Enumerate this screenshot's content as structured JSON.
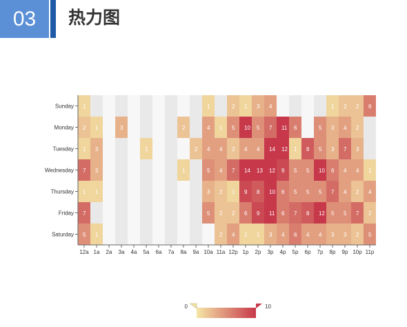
{
  "header": {
    "number": "03",
    "title": "热力图"
  },
  "chart_data": {
    "type": "heatmap",
    "x": [
      "12a",
      "1a",
      "2a",
      "3a",
      "4a",
      "5a",
      "6a",
      "7a",
      "8a",
      "9a",
      "10a",
      "11a",
      "12p",
      "1p",
      "2p",
      "3p",
      "4p",
      "5p",
      "6p",
      "7p",
      "8p",
      "9p",
      "10p",
      "11p"
    ],
    "y": [
      "Sunday",
      "Monday",
      "Tuesday",
      "Wednesday",
      "Thursday",
      "Friday",
      "Saturday"
    ],
    "values": [
      [
        1,
        0,
        0,
        0,
        0,
        0,
        0,
        0,
        0,
        0,
        1,
        0,
        2,
        1,
        3,
        4,
        0,
        0,
        0,
        0,
        1,
        2,
        2,
        6
      ],
      [
        2,
        1,
        0,
        3,
        0,
        0,
        0,
        0,
        2,
        0,
        4,
        1,
        5,
        10,
        5,
        7,
        11,
        6,
        0,
        5,
        3,
        4,
        2,
        0
      ],
      [
        1,
        3,
        0,
        0,
        0,
        1,
        0,
        0,
        0,
        2,
        4,
        4,
        2,
        4,
        4,
        14,
        12,
        1,
        8,
        5,
        3,
        7,
        3,
        0
      ],
      [
        7,
        3,
        0,
        0,
        0,
        0,
        0,
        0,
        1,
        0,
        5,
        4,
        7,
        14,
        13,
        12,
        9,
        5,
        5,
        10,
        6,
        4,
        4,
        1
      ],
      [
        1,
        1,
        0,
        0,
        0,
        0,
        0,
        0,
        0,
        0,
        3,
        2,
        1,
        9,
        8,
        10,
        6,
        5,
        5,
        5,
        7,
        4,
        2,
        4
      ],
      [
        7,
        0,
        0,
        0,
        0,
        0,
        0,
        0,
        0,
        0,
        5,
        2,
        2,
        6,
        9,
        11,
        6,
        7,
        8,
        12,
        5,
        5,
        7,
        2
      ],
      [
        5,
        1,
        0,
        0,
        0,
        0,
        0,
        0,
        0,
        0,
        0,
        2,
        4,
        1,
        1,
        3,
        4,
        6,
        4,
        4,
        3,
        3,
        2,
        5
      ]
    ],
    "visual_map": {
      "min": 0,
      "max": 10,
      "min_label": "0",
      "max_label": "10"
    },
    "colors": {
      "low": "#f5e6a6",
      "high": "#c6384a",
      "empty_light": "#f7f7f7",
      "empty_dark": "#e9e9e9",
      "label": "#ffffff"
    }
  }
}
